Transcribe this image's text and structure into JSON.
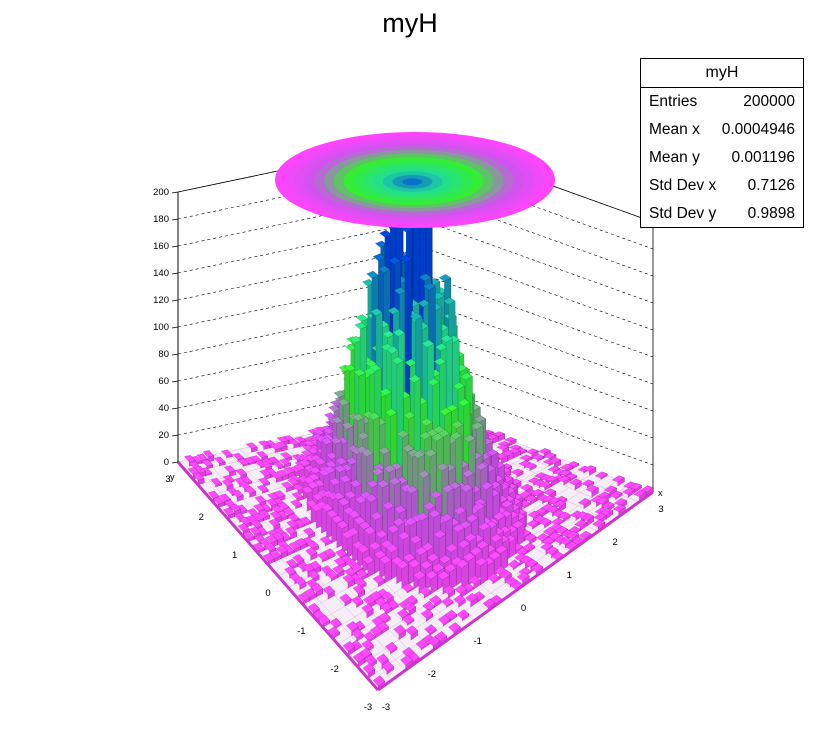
{
  "chart_data": {
    "type": "lego-3d-histogram-with-contour",
    "title": "myH",
    "z_ticks": [
      "0",
      "20",
      "40",
      "60",
      "80",
      "100",
      "120",
      "140",
      "160",
      "180",
      "200"
    ],
    "z_range": [
      0,
      200
    ],
    "x_range": [
      -3,
      3
    ],
    "y_range": [
      -3,
      3
    ],
    "x_ticks": [
      "-3",
      "-2",
      "-1",
      "0",
      "1",
      "2",
      "3"
    ],
    "y_ticks": [
      "-3",
      "-2",
      "-1",
      "0",
      "1",
      "2",
      "3"
    ],
    "x_axis_label": "x",
    "y_axis_label": "y",
    "distribution": {
      "mean_x": 0.0004946,
      "mean_y": 0.001196,
      "std_x": 0.7126,
      "std_y": 0.9898,
      "peak_height": 200
    },
    "palette": [
      "#ff44ff",
      "#cc55ee",
      "#33ee33",
      "#22dd99",
      "#0044dd"
    ],
    "grid": "dashed"
  },
  "stats": {
    "title": "myH",
    "rows": [
      {
        "label": "Entries",
        "value": "200000"
      },
      {
        "label": "Mean x",
        "value": "0.0004946"
      },
      {
        "label": "Mean y",
        "value": "0.001196"
      },
      {
        "label": "Std Dev x",
        "value": "0.7126"
      },
      {
        "label": "Std Dev y",
        "value": "0.9898"
      }
    ]
  }
}
